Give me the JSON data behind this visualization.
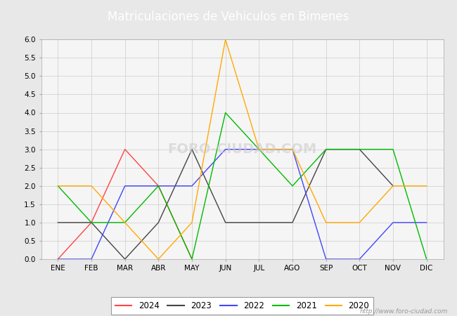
{
  "title": "Matriculaciones de Vehiculos en Bimenes",
  "title_bg_color": "#4472c4",
  "title_text_color": "#ffffff",
  "months": [
    "ENE",
    "FEB",
    "MAR",
    "ABR",
    "MAY",
    "JUN",
    "JUL",
    "AGO",
    "SEP",
    "OCT",
    "NOV",
    "DIC"
  ],
  "series": {
    "2024": {
      "color": "#ff4444",
      "data": [
        0,
        1,
        3,
        2,
        0,
        null,
        null,
        null,
        null,
        null,
        null,
        null
      ]
    },
    "2023": {
      "color": "#444444",
      "data": [
        1,
        1,
        0,
        1,
        3,
        1,
        1,
        1,
        3,
        3,
        2,
        null
      ]
    },
    "2022": {
      "color": "#4444ff",
      "data": [
        0,
        0,
        2,
        2,
        2,
        3,
        3,
        3,
        0,
        0,
        1,
        1
      ]
    },
    "2021": {
      "color": "#00bb00",
      "data": [
        2,
        1,
        1,
        2,
        0,
        4,
        3,
        2,
        3,
        3,
        3,
        0
      ]
    },
    "2020": {
      "color": "#ffaa00",
      "data": [
        2,
        2,
        1,
        0,
        1,
        6,
        3,
        3,
        1,
        1,
        2,
        2
      ]
    }
  },
  "ylim": [
    0,
    6.0
  ],
  "yticks": [
    0.0,
    0.5,
    1.0,
    1.5,
    2.0,
    2.5,
    3.0,
    3.5,
    4.0,
    4.5,
    5.0,
    5.5,
    6.0
  ],
  "background_color": "#e8e8e8",
  "plot_bg_color": "#f5f5f5",
  "grid_color": "#cccccc",
  "watermark_text": "http://www.foro-ciudad.com",
  "watermark_center": "FORO-CIUDAD.COM",
  "legend_order": [
    "2024",
    "2023",
    "2022",
    "2021",
    "2020"
  ]
}
